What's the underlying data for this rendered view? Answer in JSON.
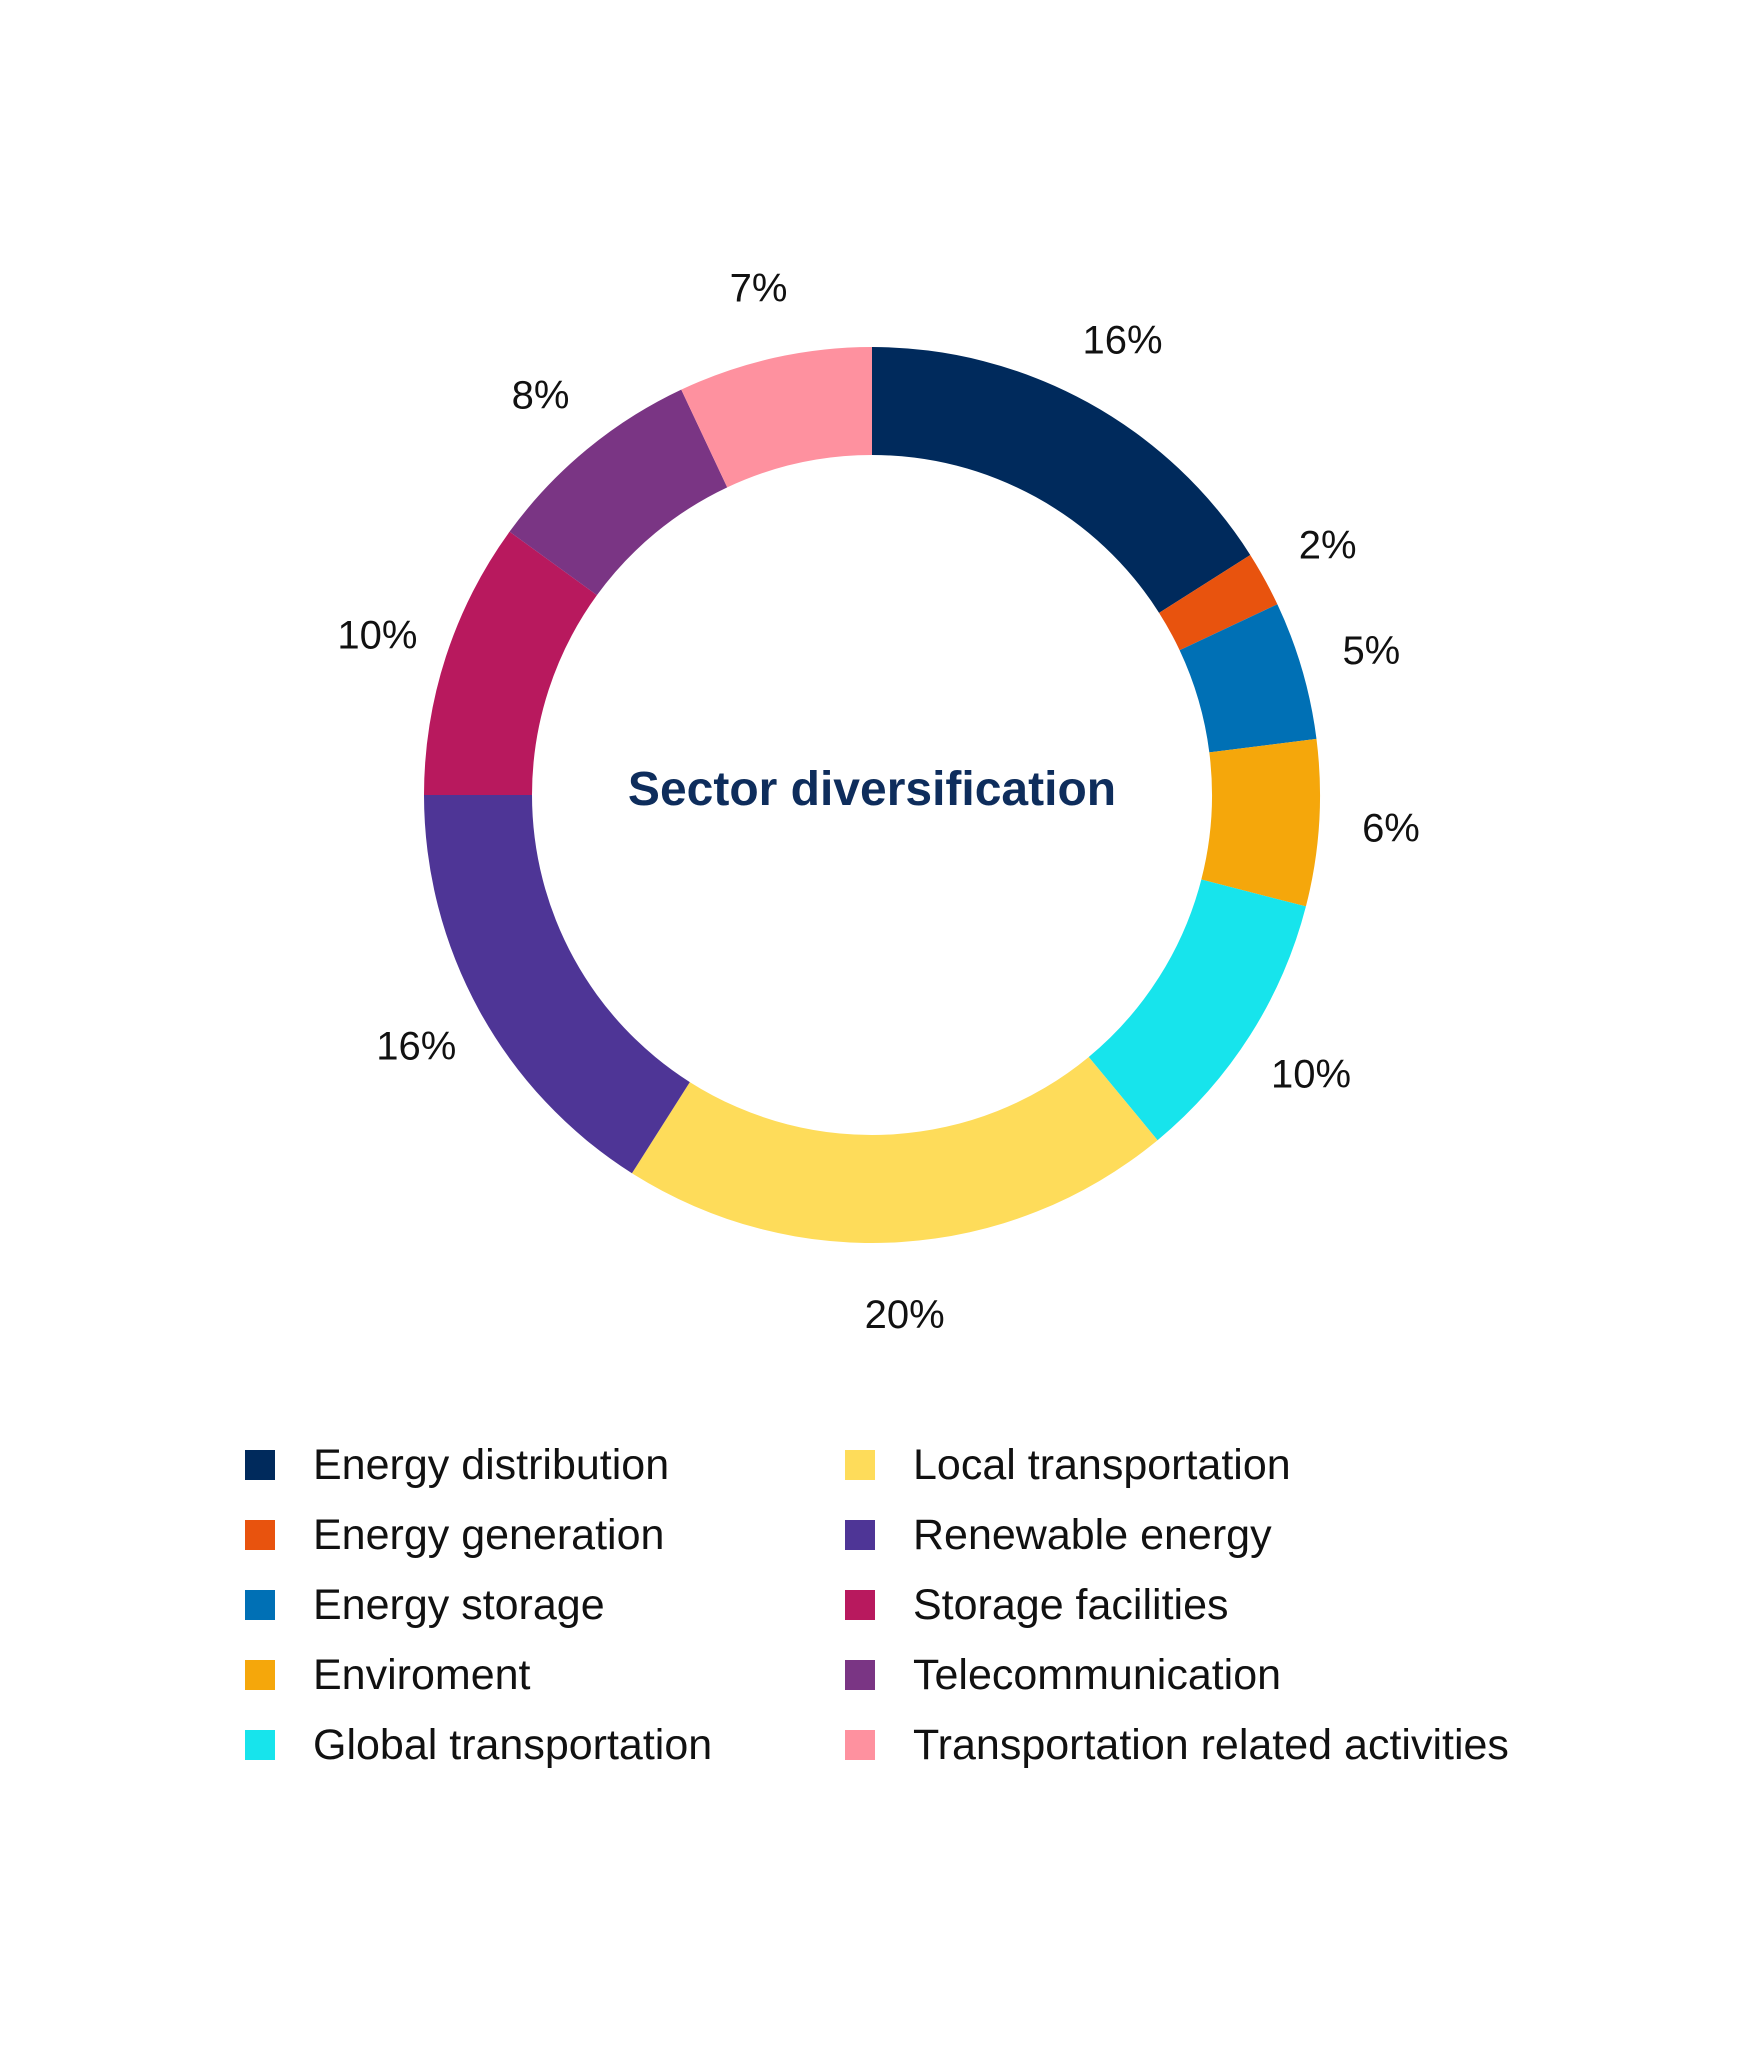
{
  "chart_data": {
    "type": "pie",
    "variant": "donut",
    "center_text": "Sector diversification",
    "slices": [
      {
        "label": "Energy distribution",
        "value": 16,
        "display": "16%",
        "color": "#002a5c"
      },
      {
        "label": "Energy generation",
        "value": 2,
        "display": "2%",
        "color": "#e8530e"
      },
      {
        "label": "Energy storage",
        "value": 5,
        "display": "5%",
        "color": "#0070b5"
      },
      {
        "label": "Enviroment",
        "value": 6,
        "display": "6%",
        "color": "#f5a70b"
      },
      {
        "label": "Global transportation",
        "value": 10,
        "display": "10%",
        "color": "#17e4ec"
      },
      {
        "label": "Local transportation",
        "value": 20,
        "display": "20%",
        "color": "#fedc5a"
      },
      {
        "label": "Renewable energy",
        "value": 16,
        "display": "16%",
        "color": "#4e3596"
      },
      {
        "label": "Storage facilities",
        "value": 10,
        "display": "10%",
        "color": "#b8195e"
      },
      {
        "label": "Telecommunication",
        "value": 8,
        "display": "8%",
        "color": "#7a3584"
      },
      {
        "label": "Transportation related activities",
        "value": 7,
        "display": "7%",
        "color": "#fe919f"
      }
    ],
    "start": "top, clockwise",
    "legend_position": "bottom, two columns"
  }
}
